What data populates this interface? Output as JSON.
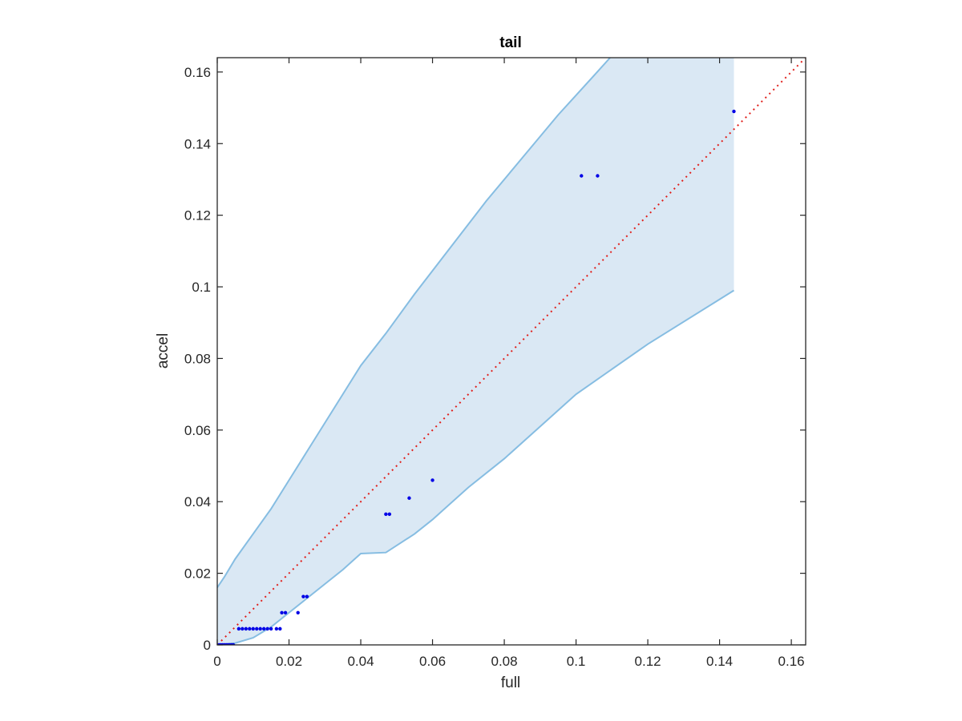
{
  "chart_data": {
    "type": "scatter",
    "title": "tail",
    "xlabel": "full",
    "ylabel": "accel",
    "xlim": [
      0,
      0.164
    ],
    "ylim": [
      0,
      0.164
    ],
    "xticks": [
      0,
      0.02,
      0.04,
      0.06,
      0.08,
      0.1,
      0.12,
      0.14,
      0.16
    ],
    "yticks": [
      0,
      0.02,
      0.04,
      0.06,
      0.08,
      0.1,
      0.12,
      0.14,
      0.16
    ],
    "xtick_labels": [
      "0",
      "0.02",
      "0.04",
      "0.06",
      "0.08",
      "0.1",
      "0.12",
      "0.14",
      "0.16"
    ],
    "ytick_labels": [
      "0",
      "0.02",
      "0.04",
      "0.06",
      "0.08",
      "0.1",
      "0.12",
      "0.14",
      "0.16"
    ],
    "grid": false,
    "colors": {
      "points": "#0000e6",
      "band_fill": "#dae8f4",
      "band_edge": "#86bde2",
      "diagonal": "#e0201c",
      "axes": "#262626"
    },
    "band": {
      "upper": [
        [
          0,
          0.016
        ],
        [
          0.002,
          0.019
        ],
        [
          0.005,
          0.024
        ],
        [
          0.01,
          0.031
        ],
        [
          0.015,
          0.038
        ],
        [
          0.02,
          0.046
        ],
        [
          0.025,
          0.054
        ],
        [
          0.03,
          0.062
        ],
        [
          0.035,
          0.07
        ],
        [
          0.04,
          0.078
        ],
        [
          0.047,
          0.087
        ],
        [
          0.055,
          0.098
        ],
        [
          0.065,
          0.111
        ],
        [
          0.075,
          0.124
        ],
        [
          0.085,
          0.136
        ],
        [
          0.095,
          0.148
        ],
        [
          0.105,
          0.159
        ],
        [
          0.1095,
          0.164
        ],
        [
          0.144,
          0.164
        ]
      ],
      "lower": [
        [
          0,
          0
        ],
        [
          0.005,
          0.0005
        ],
        [
          0.01,
          0.002
        ],
        [
          0.015,
          0.005
        ],
        [
          0.02,
          0.009
        ],
        [
          0.025,
          0.013
        ],
        [
          0.03,
          0.017
        ],
        [
          0.035,
          0.021
        ],
        [
          0.04,
          0.0255
        ],
        [
          0.047,
          0.0258
        ],
        [
          0.055,
          0.031
        ],
        [
          0.06,
          0.035
        ],
        [
          0.07,
          0.044
        ],
        [
          0.08,
          0.052
        ],
        [
          0.09,
          0.061
        ],
        [
          0.1,
          0.07
        ],
        [
          0.12,
          0.084
        ],
        [
          0.144,
          0.099
        ]
      ]
    },
    "reference_line": {
      "style": "dotted",
      "from": [
        0,
        0
      ],
      "to": [
        0.164,
        0.164
      ]
    },
    "points": [
      [
        0.0005,
        0
      ],
      [
        0.001,
        0
      ],
      [
        0.0015,
        0
      ],
      [
        0.002,
        0
      ],
      [
        0.0025,
        0
      ],
      [
        0.003,
        0
      ],
      [
        0.0035,
        0
      ],
      [
        0.004,
        0
      ],
      [
        0.0045,
        0
      ],
      [
        0.006,
        0.0045
      ],
      [
        0.007,
        0.0045
      ],
      [
        0.008,
        0.0045
      ],
      [
        0.009,
        0.0045
      ],
      [
        0.01,
        0.0045
      ],
      [
        0.011,
        0.0045
      ],
      [
        0.012,
        0.0045
      ],
      [
        0.013,
        0.0045
      ],
      [
        0.014,
        0.0045
      ],
      [
        0.015,
        0.0045
      ],
      [
        0.0165,
        0.0045
      ],
      [
        0.0175,
        0.0045
      ],
      [
        0.018,
        0.009
      ],
      [
        0.019,
        0.009
      ],
      [
        0.0225,
        0.009
      ],
      [
        0.024,
        0.0135
      ],
      [
        0.025,
        0.0135
      ],
      [
        0.047,
        0.0365
      ],
      [
        0.048,
        0.0365
      ],
      [
        0.0535,
        0.041
      ],
      [
        0.06,
        0.046
      ],
      [
        0.1015,
        0.131
      ],
      [
        0.106,
        0.131
      ],
      [
        0.144,
        0.149
      ]
    ]
  }
}
